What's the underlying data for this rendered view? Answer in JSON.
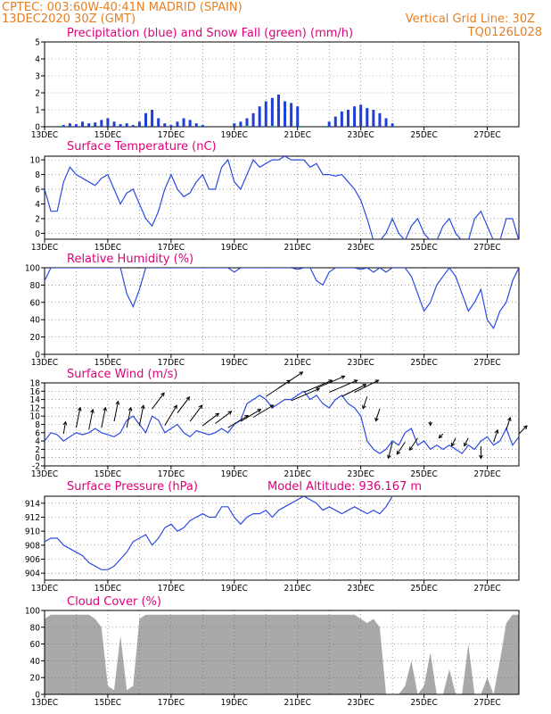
{
  "header": {
    "line1": "CPTEC:   003:60W-40:41N   MADRID (SPAIN)",
    "line2_left": "13DEC2020 30Z (GMT)",
    "line2_right": "Vertical Grid Line: 30Z",
    "code": "TQ0126L028"
  },
  "x_ticks": [
    "13DEC",
    "15DEC",
    "17DEC",
    "19DEC",
    "21DEC",
    "23DEC",
    "25DEC",
    "27DEC"
  ],
  "colors": {
    "line": "#2b4be0",
    "precip": "#1f3fd6",
    "snow": "#22b04a",
    "cloud": "#a9a9a9",
    "title": "#e0007a",
    "header": "#e67e22"
  },
  "chart_data": [
    {
      "id": "precip",
      "type": "bar",
      "title": "Precipitation (blue) and Snow Fall (green) (mm/h)",
      "ylim": [
        0,
        5
      ],
      "yticks": [
        "0",
        "1",
        "2",
        "3",
        "4",
        "5"
      ],
      "series": [
        {
          "name": "Precipitation",
          "x": [
            13.6,
            13.8,
            14.0,
            14.2,
            14.4,
            14.6,
            14.8,
            15.0,
            15.2,
            15.4,
            15.6,
            15.8,
            16.0,
            16.2,
            16.4,
            16.6,
            16.8,
            17.0,
            17.2,
            17.4,
            17.6,
            17.8,
            18.0,
            19.0,
            19.2,
            19.4,
            19.6,
            19.8,
            20.0,
            20.2,
            20.4,
            20.6,
            20.8,
            21.0,
            22.0,
            22.2,
            22.4,
            22.6,
            22.8,
            23.0,
            23.2,
            23.4,
            23.6,
            23.8,
            24.0
          ],
          "values": [
            0.1,
            0.2,
            0.15,
            0.3,
            0.2,
            0.25,
            0.4,
            0.5,
            0.3,
            0.15,
            0.2,
            0.1,
            0.3,
            0.8,
            1.0,
            0.5,
            0.2,
            0.1,
            0.3,
            0.5,
            0.4,
            0.2,
            0.1,
            0.2,
            0.3,
            0.5,
            0.8,
            1.2,
            1.5,
            1.7,
            1.9,
            1.5,
            1.4,
            1.2,
            0.3,
            0.6,
            0.9,
            1.0,
            1.2,
            1.3,
            1.1,
            1.0,
            0.8,
            0.5,
            0.2
          ]
        },
        {
          "name": "Snow Fall",
          "x": [
            13.5,
            14.5,
            16.1,
            17.9,
            19.4,
            20.2,
            21.1,
            21.9
          ],
          "values": [
            0.05,
            0.05,
            0.05,
            0.05,
            0.05,
            0.05,
            0.05,
            0.05
          ]
        }
      ]
    },
    {
      "id": "temp",
      "type": "line",
      "title": "Surface Temperature (nC)",
      "ylim": [
        -0.8,
        10.5
      ],
      "yticks": [
        "0",
        "2",
        "4",
        "6",
        "8",
        "10"
      ],
      "x": [
        13.0,
        13.2,
        13.4,
        13.6,
        13.8,
        14.0,
        14.2,
        14.4,
        14.6,
        14.8,
        15.0,
        15.2,
        15.4,
        15.6,
        15.8,
        16.0,
        16.2,
        16.4,
        16.6,
        16.8,
        17.0,
        17.2,
        17.4,
        17.6,
        17.8,
        18.0,
        18.2,
        18.4,
        18.6,
        18.8,
        19.0,
        19.2,
        19.4,
        19.6,
        19.8,
        20.0,
        20.2,
        20.4,
        20.6,
        20.8,
        21.0,
        21.2,
        21.4,
        21.6,
        21.8,
        22.0,
        22.2,
        22.4,
        22.6,
        22.8,
        23.0,
        23.2,
        23.4,
        23.6,
        23.8,
        24.0,
        24.2,
        24.4,
        24.6,
        24.8,
        25.0,
        25.2,
        25.4,
        25.6,
        25.8,
        26.0,
        26.2,
        26.4,
        26.6,
        26.8,
        27.0,
        27.2,
        27.4,
        27.6,
        27.8,
        28.0
      ],
      "values": [
        6,
        3,
        3,
        7,
        9,
        8,
        7.5,
        7,
        6.5,
        7.5,
        8,
        6,
        4,
        5.5,
        6,
        4,
        2,
        1,
        3,
        6,
        8,
        6,
        5,
        5.5,
        7,
        8,
        6,
        6,
        9,
        10,
        7,
        6,
        8,
        10,
        9,
        9.5,
        10,
        10,
        10.5,
        10,
        10,
        10,
        9,
        9.5,
        8,
        8,
        7.8,
        8,
        7,
        6,
        4.5,
        2,
        -1,
        -1,
        0,
        2,
        0,
        -1,
        1,
        2,
        0,
        -1,
        -1,
        1,
        2,
        0,
        -1,
        -1,
        2,
        3,
        1,
        -1,
        -1,
        2,
        2,
        -1
      ]
    },
    {
      "id": "rh",
      "type": "line",
      "title": "Relative Humidity (%)",
      "ylim": [
        0,
        100
      ],
      "yticks": [
        "0",
        "20",
        "40",
        "60",
        "80",
        "100"
      ],
      "x": [
        13.0,
        13.2,
        13.4,
        13.6,
        13.8,
        14.0,
        14.2,
        14.4,
        14.6,
        14.8,
        15.0,
        15.2,
        15.4,
        15.6,
        15.8,
        16.0,
        16.2,
        16.4,
        16.6,
        16.8,
        17.0,
        17.2,
        17.4,
        17.6,
        17.8,
        18.0,
        18.2,
        18.4,
        18.6,
        18.8,
        19.0,
        19.2,
        19.4,
        19.6,
        19.8,
        20.0,
        20.2,
        20.4,
        20.6,
        20.8,
        21.0,
        21.2,
        21.4,
        21.6,
        21.8,
        22.0,
        22.2,
        22.4,
        22.6,
        22.8,
        23.0,
        23.2,
        23.4,
        23.6,
        23.8,
        24.0,
        24.2,
        24.4,
        24.6,
        24.8,
        25.0,
        25.2,
        25.4,
        25.6,
        25.8,
        26.0,
        26.2,
        26.4,
        26.6,
        26.8,
        27.0,
        27.2,
        27.4,
        27.6,
        27.8,
        28.0
      ],
      "values": [
        85,
        100,
        100,
        100,
        100,
        100,
        100,
        100,
        100,
        100,
        100,
        100,
        100,
        70,
        55,
        75,
        100,
        100,
        100,
        100,
        100,
        100,
        100,
        100,
        100,
        100,
        100,
        100,
        100,
        100,
        95,
        100,
        100,
        100,
        100,
        100,
        100,
        100,
        100,
        100,
        98,
        100,
        100,
        85,
        80,
        95,
        100,
        100,
        100,
        100,
        98,
        100,
        95,
        100,
        95,
        100,
        100,
        100,
        90,
        70,
        50,
        60,
        80,
        90,
        100,
        90,
        70,
        50,
        60,
        75,
        40,
        30,
        50,
        60,
        85,
        100
      ]
    },
    {
      "id": "wind",
      "type": "line",
      "title": "Surface Wind (m/s)",
      "ylim": [
        -2,
        18
      ],
      "yticks": [
        "-2",
        "0",
        "2",
        "4",
        "6",
        "8",
        "10",
        "12",
        "14",
        "16",
        "18"
      ],
      "x": [
        13.0,
        13.2,
        13.4,
        13.6,
        13.8,
        14.0,
        14.2,
        14.4,
        14.6,
        14.8,
        15.0,
        15.2,
        15.4,
        15.6,
        15.8,
        16.0,
        16.2,
        16.4,
        16.6,
        16.8,
        17.0,
        17.2,
        17.4,
        17.6,
        17.8,
        18.0,
        18.2,
        18.4,
        18.6,
        18.8,
        19.0,
        19.2,
        19.4,
        19.6,
        19.8,
        20.0,
        20.2,
        20.4,
        20.6,
        20.8,
        21.0,
        21.2,
        21.4,
        21.6,
        21.8,
        22.0,
        22.2,
        22.4,
        22.6,
        22.8,
        23.0,
        23.2,
        23.4,
        23.6,
        23.8,
        24.0,
        24.2,
        24.4,
        24.6,
        24.8,
        25.0,
        25.2,
        25.4,
        25.6,
        25.8,
        26.0,
        26.2,
        26.4,
        26.6,
        26.8,
        27.0,
        27.2,
        27.4,
        27.6,
        27.8,
        28.0
      ],
      "values": [
        4,
        6,
        5.5,
        4,
        5,
        6,
        5.5,
        6,
        7,
        6,
        5.5,
        5,
        6,
        9,
        10,
        8,
        6,
        10,
        9,
        6,
        7,
        8,
        6,
        5,
        6.5,
        6,
        5.5,
        6,
        7,
        6,
        8,
        9,
        13,
        14,
        15,
        14,
        12,
        13,
        14,
        14,
        15,
        16,
        14,
        15,
        13,
        12,
        14,
        15,
        13,
        12,
        10,
        4,
        2,
        1,
        2,
        4,
        3,
        6,
        7,
        3,
        4,
        2,
        3,
        2,
        3,
        2,
        1,
        3,
        2,
        4,
        5,
        3,
        4,
        7,
        3,
        5
      ],
      "arrows": {
        "x": [
          13.6,
          14.0,
          14.4,
          14.8,
          15.2,
          15.6,
          16.0,
          16.4,
          16.8,
          17.2,
          17.6,
          18.0,
          18.4,
          18.8,
          19.2,
          19.6,
          20.0,
          20.4,
          20.8,
          21.2,
          21.6,
          22.0,
          22.4,
          22.8,
          23.2,
          23.6,
          24.0,
          24.4,
          24.8,
          25.2,
          25.6,
          26.0,
          26.4,
          26.8,
          27.2,
          27.6,
          28.0
        ],
        "u": [
          0.5,
          1,
          1,
          1,
          1,
          1,
          1,
          3,
          3,
          3,
          3,
          4,
          4,
          5,
          5,
          5,
          6,
          6,
          7,
          7,
          7,
          7,
          6,
          6,
          -1,
          -1,
          -1,
          -2,
          -2,
          0,
          -1,
          -1,
          -1,
          0,
          1,
          1,
          2
        ],
        "v": [
          3,
          5,
          5,
          5,
          5,
          5,
          5,
          4,
          5,
          4,
          4,
          3,
          3,
          3,
          3,
          3,
          4,
          4,
          3,
          3,
          3,
          3,
          3,
          3,
          -3,
          -3,
          -4,
          -3,
          -3,
          -1,
          -1,
          -2,
          -2,
          -3,
          3,
          3,
          2
        ]
      }
    },
    {
      "id": "press",
      "type": "line",
      "title": "Surface Pressure (hPa)",
      "annotation": "Model Altitude: 936.167 m",
      "ylim": [
        903,
        915
      ],
      "yticks": [
        "904",
        "906",
        "908",
        "910",
        "912",
        "914"
      ],
      "x": [
        13.0,
        13.2,
        13.4,
        13.6,
        13.8,
        14.0,
        14.2,
        14.4,
        14.6,
        14.8,
        15.0,
        15.2,
        15.4,
        15.6,
        15.8,
        16.0,
        16.2,
        16.4,
        16.6,
        16.8,
        17.0,
        17.2,
        17.4,
        17.6,
        17.8,
        18.0,
        18.2,
        18.4,
        18.6,
        18.8,
        19.0,
        19.2,
        19.4,
        19.6,
        19.8,
        20.0,
        20.2,
        20.4,
        20.6,
        20.8,
        21.0,
        21.2,
        21.4,
        21.6,
        21.8,
        22.0,
        22.2,
        22.4,
        22.6,
        22.8,
        23.0,
        23.2,
        23.4,
        23.6,
        23.8,
        24.0
      ],
      "values": [
        908.5,
        909,
        909,
        908,
        907.5,
        907,
        906.5,
        905.5,
        905,
        904.5,
        904.5,
        905,
        906,
        907,
        908.5,
        909,
        909.5,
        908,
        909,
        910.5,
        911,
        910,
        910.5,
        911.5,
        912,
        912.5,
        912,
        912,
        913.5,
        913.5,
        912,
        911,
        912,
        912.5,
        912.5,
        913,
        912,
        913,
        913.5,
        914,
        914.5,
        915,
        914.5,
        914,
        913,
        913.5,
        913,
        912.5,
        913,
        913.5,
        913,
        912.5,
        913,
        912.5,
        913.5,
        915
      ]
    },
    {
      "id": "cloud",
      "type": "area",
      "title": "Cloud Cover (%)",
      "ylim": [
        0,
        100
      ],
      "yticks": [
        "0",
        "20",
        "40",
        "60",
        "80",
        "100"
      ],
      "x": [
        13.0,
        13.2,
        13.4,
        13.6,
        13.8,
        14.0,
        14.2,
        14.4,
        14.6,
        14.8,
        15.0,
        15.2,
        15.4,
        15.6,
        15.8,
        16.0,
        16.2,
        16.4,
        16.6,
        16.8,
        17.0,
        17.2,
        17.4,
        17.6,
        17.8,
        18.0,
        18.2,
        18.4,
        18.6,
        18.8,
        19.0,
        19.2,
        19.4,
        19.6,
        19.8,
        20.0,
        20.2,
        20.4,
        20.6,
        20.8,
        21.0,
        21.2,
        21.4,
        21.6,
        21.8,
        22.0,
        22.2,
        22.4,
        22.6,
        22.8,
        23.0,
        23.2,
        23.4,
        23.6,
        23.8,
        24.0,
        24.2,
        24.4,
        24.6,
        24.8,
        25.0,
        25.2,
        25.4,
        25.6,
        25.8,
        26.0,
        26.2,
        26.4,
        26.6,
        26.8,
        27.0,
        27.2,
        27.4,
        27.6,
        27.8,
        28.0
      ],
      "values": [
        90,
        95,
        95,
        95,
        95,
        95,
        95,
        95,
        90,
        80,
        10,
        5,
        70,
        5,
        10,
        90,
        95,
        95,
        95,
        95,
        95,
        95,
        95,
        95,
        95,
        95,
        95,
        95,
        95,
        95,
        95,
        95,
        95,
        95,
        95,
        95,
        95,
        95,
        95,
        95,
        95,
        95,
        95,
        95,
        95,
        95,
        95,
        95,
        95,
        95,
        90,
        85,
        90,
        80,
        0,
        0,
        0,
        10,
        40,
        0,
        10,
        50,
        0,
        0,
        30,
        0,
        0,
        60,
        0,
        0,
        20,
        0,
        40,
        85,
        95,
        95
      ]
    }
  ]
}
